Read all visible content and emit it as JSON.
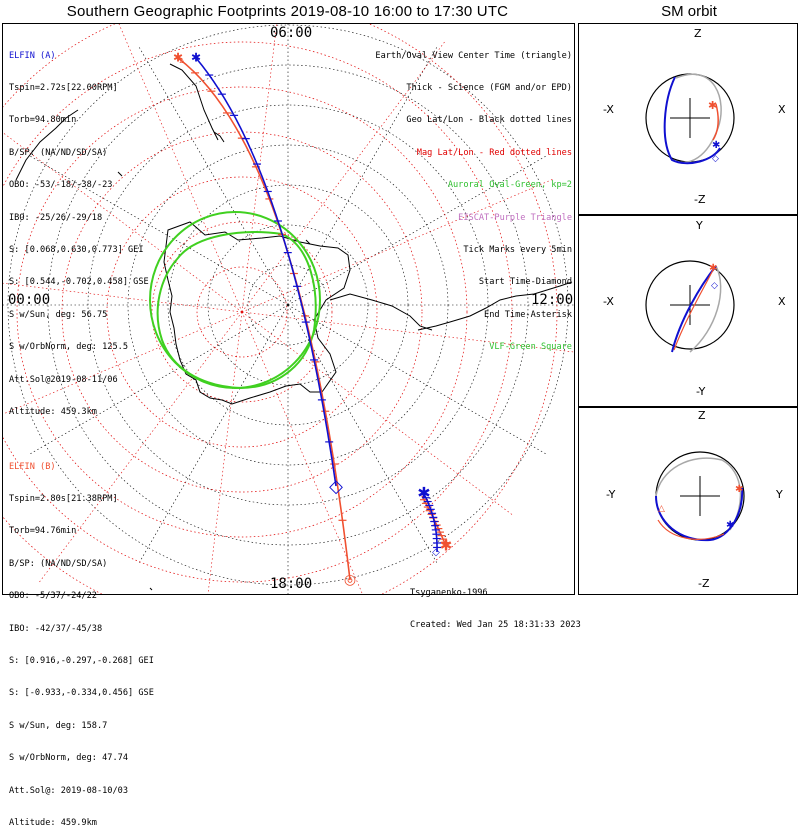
{
  "header": {
    "title": "Southern Geographic Footprints 2019-08-10 16:00 to 17:30 UTC",
    "orbit_title": "SM orbit"
  },
  "sat_a": {
    "name": "ELFIN (A)",
    "color": "#1010d0",
    "lines": [
      "Tspin=2.72s[22.00RPM]",
      "Torb=94.80min",
      "B/SP: (NA/ND/SD/SA)",
      "OBO: -53/-18/-38/-23",
      "IBO: -25/26/-29/18",
      "S: [0.068,0.630,0.773] GEI",
      "S: [0.544,-0.702,0.458] GSE",
      "S w/Sun, deg: 56.75",
      "S w/OrbNorm, deg: 125.5",
      "Att.Sol@2019-08-11/06",
      "Altitude: 459.3km"
    ]
  },
  "sat_b": {
    "name": "ELFIN (B)",
    "color": "#f05030",
    "lines": [
      "Tspin=2.80s[21.38RPM]",
      "Torb=94.76min",
      "B/SP: (NA/ND/SD/SA)",
      "OBO: -5/37/-24/22",
      "IBO: -42/37/-45/38",
      "S: [0.916,-0.297,-0.268] GEI",
      "S: [-0.933,-0.334,0.456] GSE",
      "S w/Sun, deg: 158.7",
      "S w/OrbNorm, deg: 47.74",
      "Att.Sol@: 2019-08-10/03",
      "Altitude: 459.9km"
    ]
  },
  "legend": [
    {
      "text": "Earth/Oval View Center Time (triangle)",
      "color": "#000000"
    },
    {
      "text": "Thick - Science (FGM and/or EPD)",
      "color": "#000000"
    },
    {
      "text": "Geo Lat/Lon - Black dotted lines",
      "color": "#000000"
    },
    {
      "text": "Mag Lat/Lon - Red dotted lines",
      "color": "#e00000"
    },
    {
      "text": "Auroral Oval-Green, kp=2",
      "color": "#30c030"
    },
    {
      "text": "EISCAT-Purple Triangle",
      "color": "#c070c0"
    },
    {
      "text": "Tick Marks every 5min",
      "color": "#000000"
    },
    {
      "text": "Start Time-Diamond",
      "color": "#000000"
    },
    {
      "text": "End Time-Asterisk",
      "color": "#000000"
    },
    {
      "text": "VLF-Green Square",
      "color": "#30c030"
    }
  ],
  "mlt_labels": {
    "top": "06:00",
    "left": "00:00",
    "right": "12:00",
    "bottom": "18:00"
  },
  "credits": {
    "model": "Tsyganenko-1996",
    "created": "Created: Wed Jan 25 18:31:33 2023"
  },
  "orbit_panels": [
    {
      "top": "Z",
      "bottom": "-Z",
      "left": "-X",
      "right": "X"
    },
    {
      "top": "Y",
      "bottom": "-Y",
      "left": "-X",
      "right": "X"
    },
    {
      "top": "Z",
      "bottom": "-Z",
      "left": "-Y",
      "right": "Y"
    }
  ],
  "colors": {
    "sat_a": "#1010d0",
    "sat_b": "#f05030",
    "oval": "#40d020",
    "mag_grid": "#e00000",
    "orbit_grey": "#a8a8a8"
  },
  "chart_data": {
    "type": "line",
    "title": "Southern Geographic Footprints 2019-08-10 16:00 to 17:30 UTC",
    "series": [
      {
        "name": "ELFIN (A)",
        "color": "#1010d0"
      },
      {
        "name": "ELFIN (B)",
        "color": "#f05030"
      }
    ]
  }
}
